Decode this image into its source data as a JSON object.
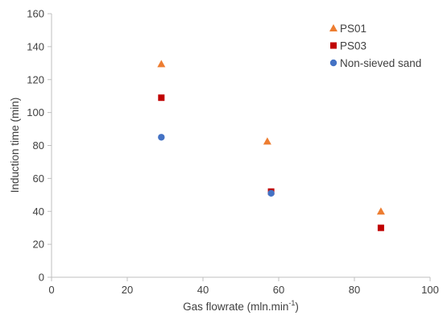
{
  "chart_data": {
    "type": "scatter",
    "title": "",
    "xlabel": "Gas flowrate (mln.min",
    "xlabel_superscript": "-1",
    "xlabel_suffix": ")",
    "ylabel": "Induction time (min)",
    "xlim": [
      0,
      100
    ],
    "ylim": [
      0,
      160
    ],
    "xticks": [
      0,
      20,
      40,
      60,
      80,
      100
    ],
    "yticks": [
      0,
      20,
      40,
      60,
      80,
      100,
      120,
      140,
      160
    ],
    "grid": false,
    "legend_position": "top-right",
    "series": [
      {
        "name": "PS01",
        "marker": "triangle",
        "color": "#ED7D31",
        "x": [
          29,
          57,
          87
        ],
        "y": [
          129.5,
          82.5,
          40
        ]
      },
      {
        "name": "PS03",
        "marker": "square",
        "color": "#C00000",
        "x": [
          29,
          58,
          87
        ],
        "y": [
          109,
          52,
          30
        ]
      },
      {
        "name": "Non-sieved sand",
        "marker": "circle",
        "color": "#4472C4",
        "x": [
          29,
          58
        ],
        "y": [
          85,
          51
        ]
      }
    ]
  }
}
